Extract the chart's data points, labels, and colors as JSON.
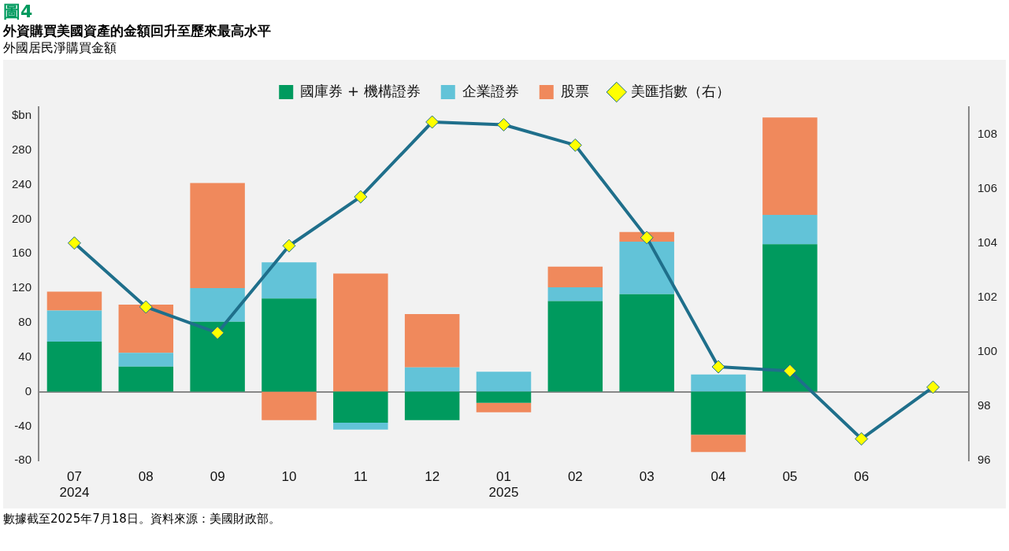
{
  "chart_data": {
    "type": "bar",
    "stacked": true,
    "title": "外資購買美國資產的金額回升至歷來最高水平",
    "subtitle": "外國居民淨購買金額",
    "annotations": [
      "圖4",
      "數據截至2025年7月18日。資料來源：美國財政部。"
    ],
    "categories": [
      "07\n2024",
      "08",
      "09",
      "10",
      "11",
      "12",
      "01\n2025",
      "02",
      "03",
      "04",
      "05",
      "06",
      null
    ],
    "series": [
      {
        "name": "國庫券 + 機構證券",
        "color": "#009a5e",
        "values": [
          58,
          29,
          81,
          108,
          -36,
          -33,
          -13,
          105,
          113,
          -50,
          171,
          null,
          null
        ]
      },
      {
        "name": "企業證券",
        "color": "#62c3d8",
        "values": [
          36,
          16,
          39,
          42,
          -8,
          28,
          23,
          16,
          61,
          20,
          34,
          null,
          null
        ]
      },
      {
        "name": "股票",
        "color": "#f0895c",
        "values": [
          22,
          56,
          122,
          -33,
          137,
          62,
          -11,
          24,
          11,
          -20,
          113,
          null,
          null
        ]
      },
      {
        "name": "美匯指數（右）",
        "type": "line",
        "axis": "y2",
        "color": "#1f6f8b",
        "marker": "diamond",
        "values": [
          104.0,
          101.65,
          100.7,
          103.9,
          105.7,
          108.45,
          108.35,
          107.6,
          104.2,
          99.45,
          99.3,
          96.8,
          98.7
        ]
      }
    ],
    "ylim": [
      -80,
      330
    ],
    "yticks": [
      -80,
      -40,
      0,
      40,
      80,
      120,
      160,
      200,
      240,
      280,
      {
        "value": 320,
        "label": "$bn"
      }
    ],
    "y2lim": [
      96,
      109
    ],
    "y2ticks": [
      96,
      98,
      100,
      102,
      104,
      106,
      108
    ],
    "legend": "top"
  }
}
